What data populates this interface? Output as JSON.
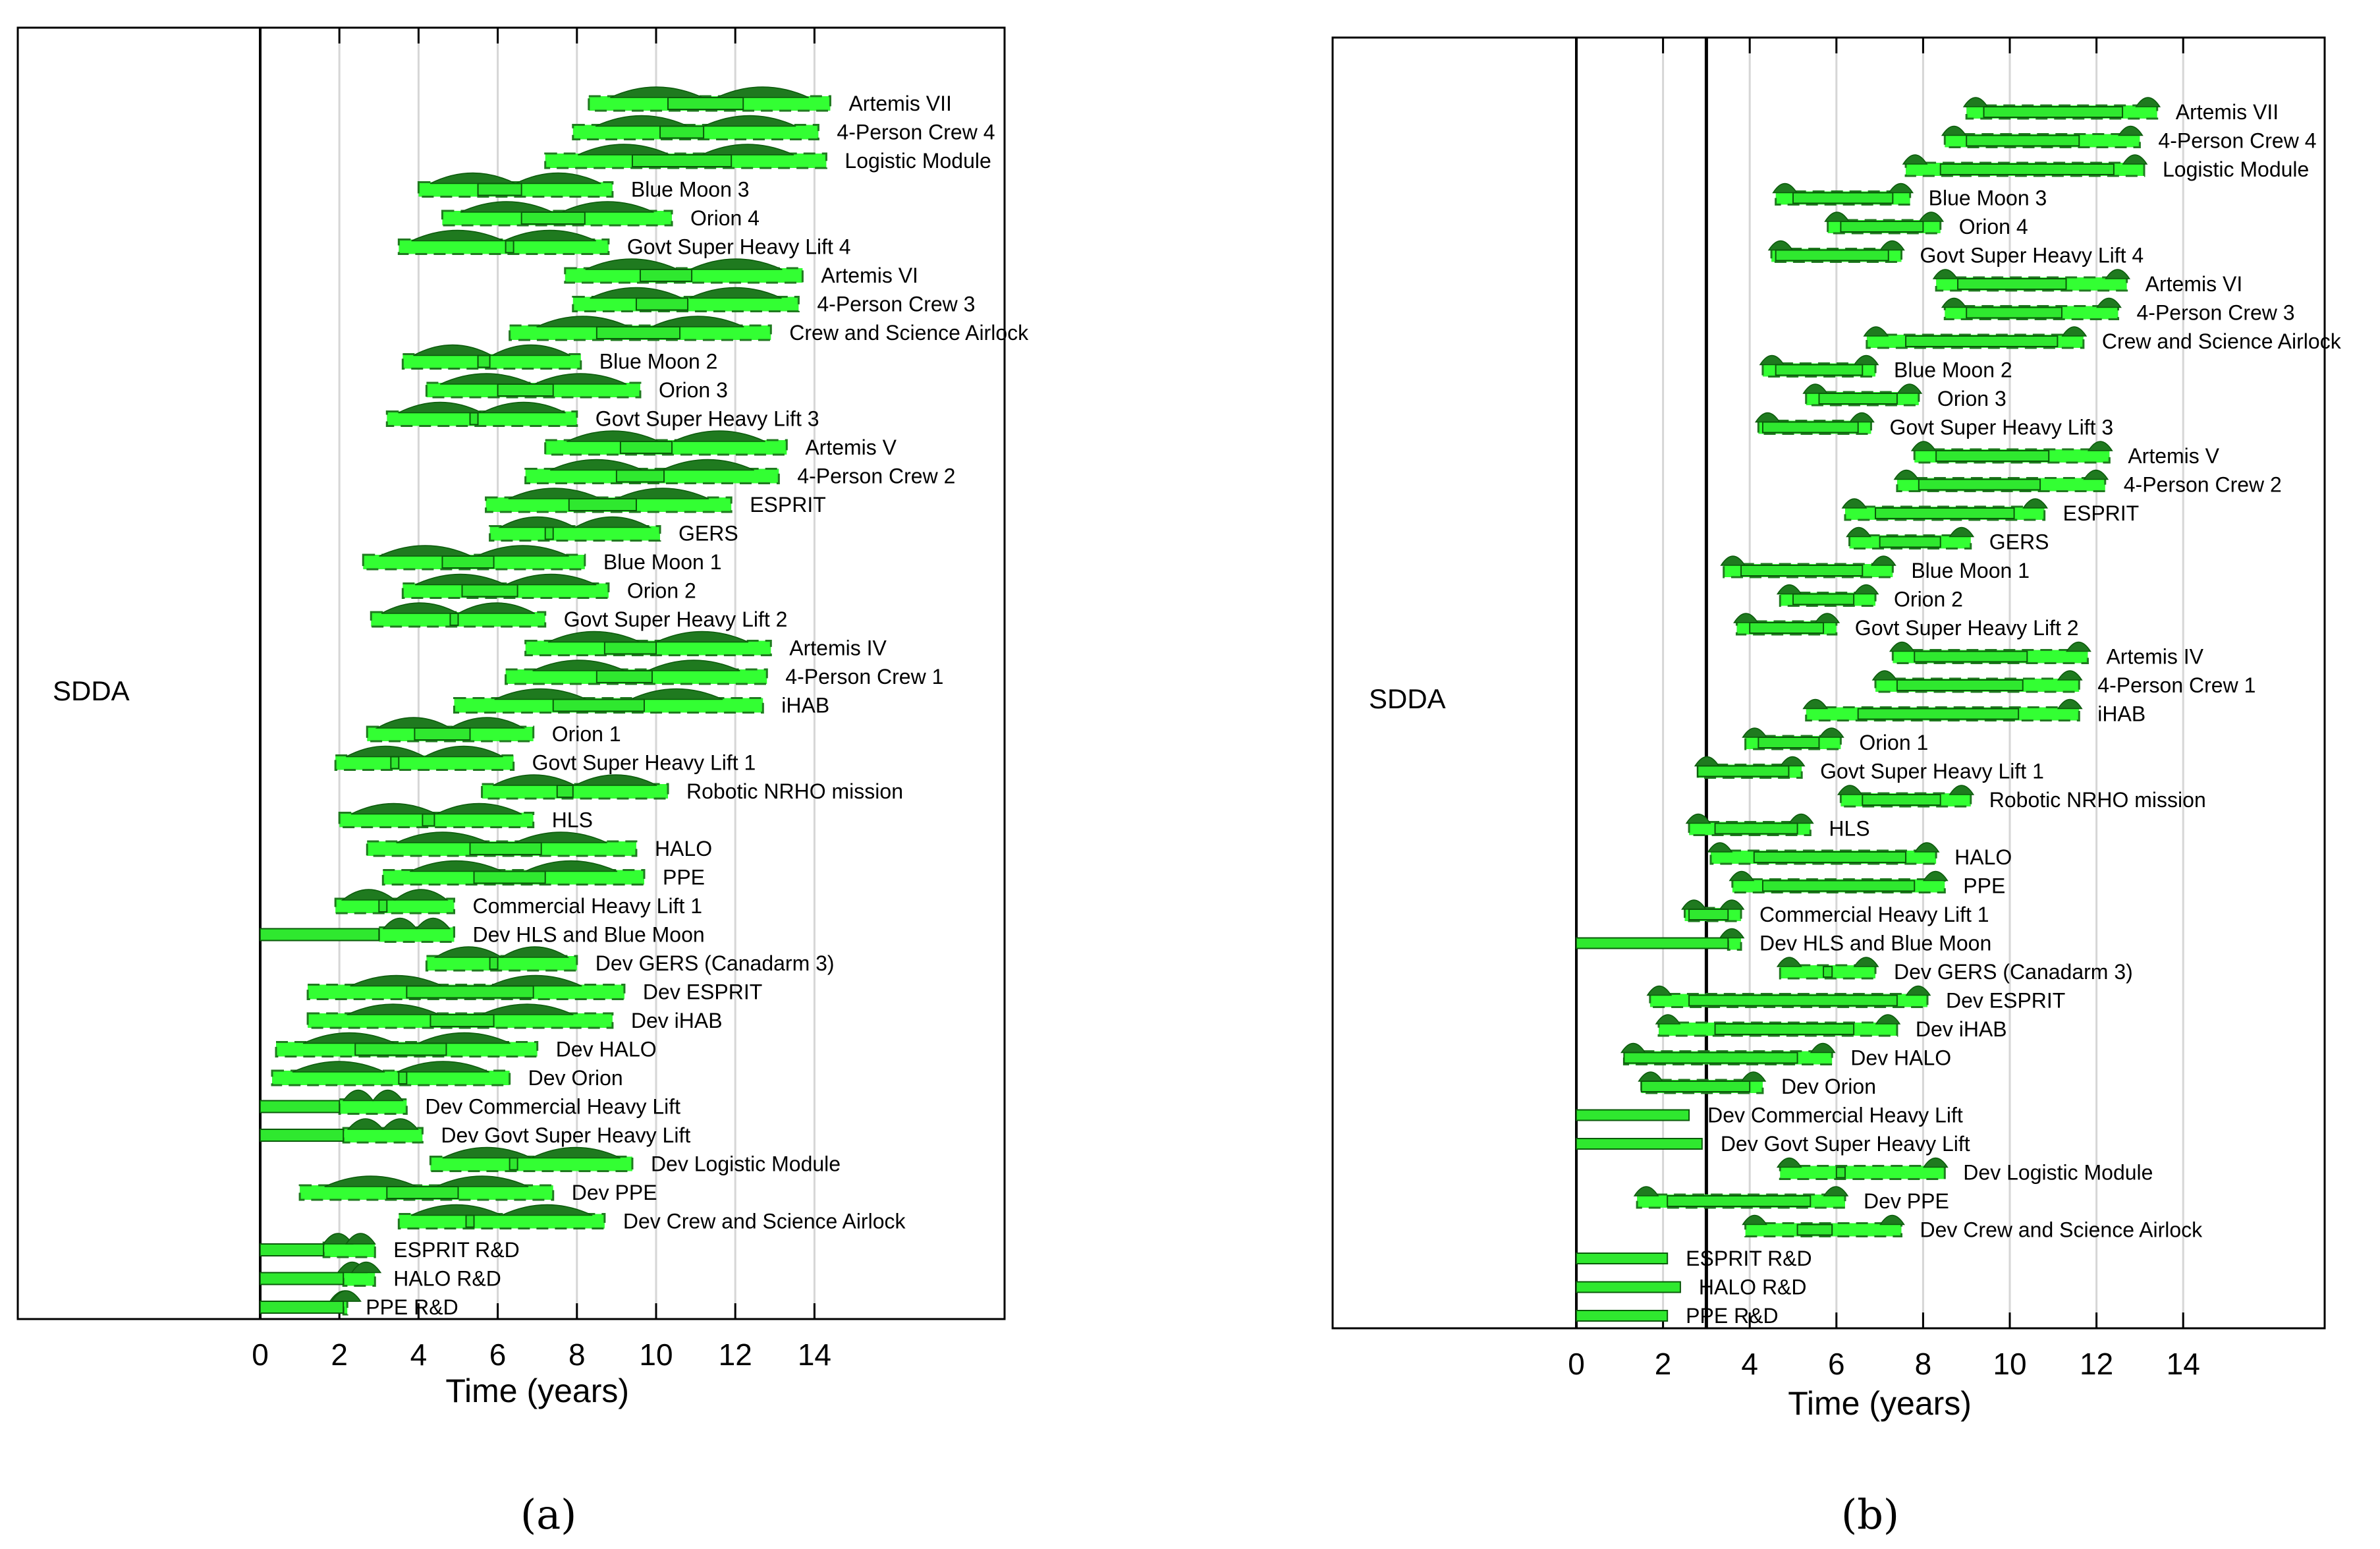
{
  "colors": {
    "bar_fill": "#2fe82f",
    "bar_edge": "#0a5a0a",
    "dist_dark": "#1f7a1f",
    "dist_light": "#33ff33",
    "grid": "#d6d6d6",
    "axis": "#000000"
  },
  "captions": {
    "a": "(a)",
    "b": "(b)"
  },
  "chart_data": [
    {
      "type": "gantt",
      "panel": "a",
      "row_label": "SDDA",
      "xlabel": "Time (years)",
      "xlim": [
        0,
        18.7
      ],
      "xticks": [
        0,
        2,
        4,
        6,
        8,
        10,
        12,
        14
      ],
      "grid": "vertical",
      "now_line": null,
      "tasks": [
        {
          "label": "Artemis VII",
          "start": 10.3,
          "end": 12.2,
          "spread_start": 8.3,
          "spread_end": 14.4
        },
        {
          "label": "4-Person Crew 4",
          "start": 10.1,
          "end": 11.2,
          "spread_start": 7.9,
          "spread_end": 14.1
        },
        {
          "label": "Logistic Module",
          "start": 9.4,
          "end": 11.9,
          "spread_start": 7.2,
          "spread_end": 14.3
        },
        {
          "label": "Blue Moon 3",
          "start": 5.5,
          "end": 6.6,
          "spread_start": 4.0,
          "spread_end": 8.9
        },
        {
          "label": "Orion 4",
          "start": 6.6,
          "end": 8.2,
          "spread_start": 4.6,
          "spread_end": 10.4
        },
        {
          "label": "Govt Super Heavy Lift 4",
          "start": 6.2,
          "end": 6.4,
          "spread_start": 3.5,
          "spread_end": 8.8
        },
        {
          "label": "Artemis VI",
          "start": 9.6,
          "end": 10.9,
          "spread_start": 7.7,
          "spread_end": 13.7
        },
        {
          "label": "4-Person Crew 3",
          "start": 9.5,
          "end": 10.8,
          "spread_start": 7.9,
          "spread_end": 13.6
        },
        {
          "label": "Crew and Science Airlock",
          "start": 8.5,
          "end": 10.6,
          "spread_start": 6.3,
          "spread_end": 12.9
        },
        {
          "label": "Blue Moon 2",
          "start": 5.5,
          "end": 5.8,
          "spread_start": 3.6,
          "spread_end": 8.1
        },
        {
          "label": "Orion 3",
          "start": 6.0,
          "end": 7.4,
          "spread_start": 4.2,
          "spread_end": 9.6
        },
        {
          "label": "Govt Super Heavy Lift 3",
          "start": 5.3,
          "end": 5.5,
          "spread_start": 3.2,
          "spread_end": 8.0
        },
        {
          "label": "Artemis V",
          "start": 9.1,
          "end": 10.4,
          "spread_start": 7.2,
          "spread_end": 13.3
        },
        {
          "label": "4-Person Crew 2",
          "start": 9.0,
          "end": 10.2,
          "spread_start": 6.7,
          "spread_end": 13.1
        },
        {
          "label": "ESPRIT",
          "start": 7.8,
          "end": 9.5,
          "spread_start": 5.7,
          "spread_end": 11.9
        },
        {
          "label": "GERS",
          "start": 7.2,
          "end": 7.4,
          "spread_start": 5.8,
          "spread_end": 10.1
        },
        {
          "label": "Blue Moon 1",
          "start": 4.6,
          "end": 5.9,
          "spread_start": 2.6,
          "spread_end": 8.2
        },
        {
          "label": "Orion 2",
          "start": 5.1,
          "end": 6.5,
          "spread_start": 3.6,
          "spread_end": 8.8
        },
        {
          "label": "Govt Super Heavy Lift 2",
          "start": 4.8,
          "end": 5.0,
          "spread_start": 2.8,
          "spread_end": 7.2
        },
        {
          "label": "Artemis IV",
          "start": 8.7,
          "end": 10.0,
          "spread_start": 6.7,
          "spread_end": 12.9
        },
        {
          "label": "4-Person Crew 1",
          "start": 8.5,
          "end": 9.9,
          "spread_start": 6.2,
          "spread_end": 12.8
        },
        {
          "label": "iHAB",
          "start": 7.4,
          "end": 9.7,
          "spread_start": 4.9,
          "spread_end": 12.7
        },
        {
          "label": "Orion 1",
          "start": 3.9,
          "end": 5.3,
          "spread_start": 2.7,
          "spread_end": 6.9
        },
        {
          "label": "Govt Super Heavy Lift 1",
          "start": 3.3,
          "end": 3.5,
          "spread_start": 1.9,
          "spread_end": 6.4
        },
        {
          "label": "Robotic NRHO mission",
          "start": 7.5,
          "end": 7.9,
          "spread_start": 5.6,
          "spread_end": 10.3
        },
        {
          "label": "HLS",
          "start": 4.1,
          "end": 4.4,
          "spread_start": 2.0,
          "spread_end": 6.9
        },
        {
          "label": "HALO",
          "start": 5.3,
          "end": 7.1,
          "spread_start": 2.7,
          "spread_end": 9.5
        },
        {
          "label": "PPE",
          "start": 5.4,
          "end": 7.2,
          "spread_start": 3.1,
          "spread_end": 9.7
        },
        {
          "label": "Commercial Heavy Lift 1",
          "start": 3.0,
          "end": 3.2,
          "spread_start": 1.9,
          "spread_end": 4.9
        },
        {
          "label": "Dev HLS and Blue Moon",
          "start": 0.0,
          "end": 3.0,
          "spread_start": 3.0,
          "spread_end": 4.9
        },
        {
          "label": "Dev GERS (Canadarm 3)",
          "start": 5.8,
          "end": 6.0,
          "spread_start": 4.2,
          "spread_end": 8.0
        },
        {
          "label": "Dev ESPRIT",
          "start": 3.7,
          "end": 6.9,
          "spread_start": 1.2,
          "spread_end": 9.2
        },
        {
          "label": "Dev iHAB",
          "start": 4.3,
          "end": 5.9,
          "spread_start": 1.2,
          "spread_end": 8.9
        },
        {
          "label": "Dev HALO",
          "start": 2.4,
          "end": 4.7,
          "spread_start": 0.4,
          "spread_end": 7.0
        },
        {
          "label": "Dev Orion",
          "start": 3.5,
          "end": 3.7,
          "spread_start": 0.3,
          "spread_end": 6.3
        },
        {
          "label": "Dev Commercial Heavy Lift",
          "start": 0.0,
          "end": 2.0,
          "spread_start": 2.0,
          "spread_end": 3.7
        },
        {
          "label": "Dev Govt Super Heavy Lift",
          "start": 0.0,
          "end": 2.1,
          "spread_start": 2.1,
          "spread_end": 4.1
        },
        {
          "label": "Dev Logistic Module",
          "start": 6.3,
          "end": 6.5,
          "spread_start": 4.3,
          "spread_end": 9.4
        },
        {
          "label": "Dev PPE",
          "start": 3.2,
          "end": 5.0,
          "spread_start": 1.0,
          "spread_end": 7.4
        },
        {
          "label": "Dev Crew and Science Airlock",
          "start": 5.2,
          "end": 5.4,
          "spread_start": 3.5,
          "spread_end": 8.7
        },
        {
          "label": "ESPRIT R&D",
          "start": 0.0,
          "end": 1.6,
          "spread_start": 1.6,
          "spread_end": 2.9
        },
        {
          "label": "HALO R&D",
          "start": 0.0,
          "end": 2.1,
          "spread_start": 2.1,
          "spread_end": 2.9
        },
        {
          "label": "PPE R&D",
          "start": 0.0,
          "end": 2.1,
          "spread_start": 2.1,
          "spread_end": 2.2
        }
      ]
    },
    {
      "type": "gantt",
      "panel": "b",
      "row_label": "SDDA",
      "xlabel": "Time (years)",
      "xlim": [
        0,
        17.3
      ],
      "xticks": [
        0,
        2,
        4,
        6,
        8,
        10,
        12,
        14
      ],
      "grid": "vertical",
      "now_line": 3.0,
      "tasks": [
        {
          "label": "Artemis VII",
          "start": 9.4,
          "end": 12.6,
          "spread_start": 9.0,
          "spread_end": 13.4
        },
        {
          "label": "4-Person Crew 4",
          "start": 9.0,
          "end": 11.6,
          "spread_start": 8.5,
          "spread_end": 13.0
        },
        {
          "label": "Logistic Module",
          "start": 8.4,
          "end": 12.4,
          "spread_start": 7.6,
          "spread_end": 13.1
        },
        {
          "label": "Blue Moon 3",
          "start": 5.0,
          "end": 7.3,
          "spread_start": 4.6,
          "spread_end": 7.7
        },
        {
          "label": "Orion 4",
          "start": 6.1,
          "end": 8.0,
          "spread_start": 5.8,
          "spread_end": 8.4
        },
        {
          "label": "Govt Super Heavy Lift 4",
          "start": 4.6,
          "end": 7.2,
          "spread_start": 4.5,
          "spread_end": 7.5
        },
        {
          "label": "Artemis VI",
          "start": 8.8,
          "end": 11.3,
          "spread_start": 8.3,
          "spread_end": 12.7
        },
        {
          "label": "4-Person Crew 3",
          "start": 9.0,
          "end": 11.2,
          "spread_start": 8.5,
          "spread_end": 12.5
        },
        {
          "label": "Crew and Science Airlock",
          "start": 7.6,
          "end": 11.1,
          "spread_start": 6.7,
          "spread_end": 11.7
        },
        {
          "label": "Blue Moon 2",
          "start": 4.6,
          "end": 6.6,
          "spread_start": 4.3,
          "spread_end": 6.9
        },
        {
          "label": "Orion 3",
          "start": 5.6,
          "end": 7.4,
          "spread_start": 5.3,
          "spread_end": 7.9
        },
        {
          "label": "Govt Super Heavy Lift 3",
          "start": 4.3,
          "end": 6.5,
          "spread_start": 4.2,
          "spread_end": 6.8
        },
        {
          "label": "Artemis V",
          "start": 8.3,
          "end": 10.9,
          "spread_start": 7.8,
          "spread_end": 12.3
        },
        {
          "label": "4-Person Crew 2",
          "start": 7.9,
          "end": 10.7,
          "spread_start": 7.4,
          "spread_end": 12.2
        },
        {
          "label": "ESPRIT",
          "start": 6.9,
          "end": 10.1,
          "spread_start": 6.2,
          "spread_end": 10.8
        },
        {
          "label": "GERS",
          "start": 7.0,
          "end": 8.4,
          "spread_start": 6.3,
          "spread_end": 9.1
        },
        {
          "label": "Blue Moon 1",
          "start": 3.8,
          "end": 6.6,
          "spread_start": 3.4,
          "spread_end": 7.3
        },
        {
          "label": "Orion 2",
          "start": 5.0,
          "end": 6.4,
          "spread_start": 4.7,
          "spread_end": 6.9
        },
        {
          "label": "Govt Super Heavy Lift 2",
          "start": 4.0,
          "end": 5.7,
          "spread_start": 3.7,
          "spread_end": 6.0
        },
        {
          "label": "Artemis IV",
          "start": 7.8,
          "end": 10.4,
          "spread_start": 7.3,
          "spread_end": 11.8
        },
        {
          "label": "4-Person Crew 1",
          "start": 7.4,
          "end": 10.3,
          "spread_start": 6.9,
          "spread_end": 11.6
        },
        {
          "label": "iHAB",
          "start": 6.5,
          "end": 10.2,
          "spread_start": 5.3,
          "spread_end": 11.6
        },
        {
          "label": "Orion 1",
          "start": 4.2,
          "end": 5.6,
          "spread_start": 3.9,
          "spread_end": 6.1
        },
        {
          "label": "Govt Super Heavy Lift 1",
          "start": 2.8,
          "end": 4.9,
          "spread_start": 2.8,
          "spread_end": 5.2
        },
        {
          "label": "Robotic NRHO mission",
          "start": 6.6,
          "end": 8.4,
          "spread_start": 6.1,
          "spread_end": 9.1
        },
        {
          "label": "HLS",
          "start": 3.2,
          "end": 5.1,
          "spread_start": 2.6,
          "spread_end": 5.4
        },
        {
          "label": "HALO",
          "start": 4.1,
          "end": 7.6,
          "spread_start": 3.1,
          "spread_end": 8.3
        },
        {
          "label": "PPE",
          "start": 4.3,
          "end": 7.8,
          "spread_start": 3.6,
          "spread_end": 8.5
        },
        {
          "label": "Commercial Heavy Lift 1",
          "start": 2.6,
          "end": 3.5,
          "spread_start": 2.5,
          "spread_end": 3.8
        },
        {
          "label": "Dev HLS and Blue Moon",
          "start": 0.0,
          "end": 3.5,
          "spread_start": 3.5,
          "spread_end": 3.8
        },
        {
          "label": "Dev GERS (Canadarm 3)",
          "start": 5.7,
          "end": 5.9,
          "spread_start": 4.7,
          "spread_end": 6.9
        },
        {
          "label": "Dev ESPRIT",
          "start": 2.6,
          "end": 7.4,
          "spread_start": 1.7,
          "spread_end": 8.1
        },
        {
          "label": "Dev iHAB",
          "start": 3.2,
          "end": 6.4,
          "spread_start": 1.9,
          "spread_end": 7.4
        },
        {
          "label": "Dev HALO",
          "start": 1.1,
          "end": 5.1,
          "spread_start": 1.1,
          "spread_end": 5.9
        },
        {
          "label": "Dev Orion",
          "start": 1.5,
          "end": 4.0,
          "spread_start": 1.5,
          "spread_end": 4.3
        },
        {
          "label": "Dev Commercial Heavy Lift",
          "start": 0.0,
          "end": 2.6,
          "spread_start": 2.6,
          "spread_end": 2.6
        },
        {
          "label": "Dev Govt Super Heavy Lift",
          "start": 0.0,
          "end": 2.9,
          "spread_start": 2.9,
          "spread_end": 2.9
        },
        {
          "label": "Dev Logistic Module",
          "start": 6.0,
          "end": 6.2,
          "spread_start": 4.7,
          "spread_end": 8.5
        },
        {
          "label": "Dev PPE",
          "start": 2.1,
          "end": 5.4,
          "spread_start": 1.4,
          "spread_end": 6.2
        },
        {
          "label": "Dev Crew and Science Airlock",
          "start": 5.1,
          "end": 5.9,
          "spread_start": 3.9,
          "spread_end": 7.5
        },
        {
          "label": "ESPRIT R&D",
          "start": 0.0,
          "end": 2.1,
          "spread_start": 2.1,
          "spread_end": 2.1
        },
        {
          "label": "HALO R&D",
          "start": 0.0,
          "end": 2.4,
          "spread_start": 2.4,
          "spread_end": 2.4
        },
        {
          "label": "PPE R&D",
          "start": 0.0,
          "end": 2.1,
          "spread_start": 2.1,
          "spread_end": 2.1
        }
      ]
    }
  ]
}
